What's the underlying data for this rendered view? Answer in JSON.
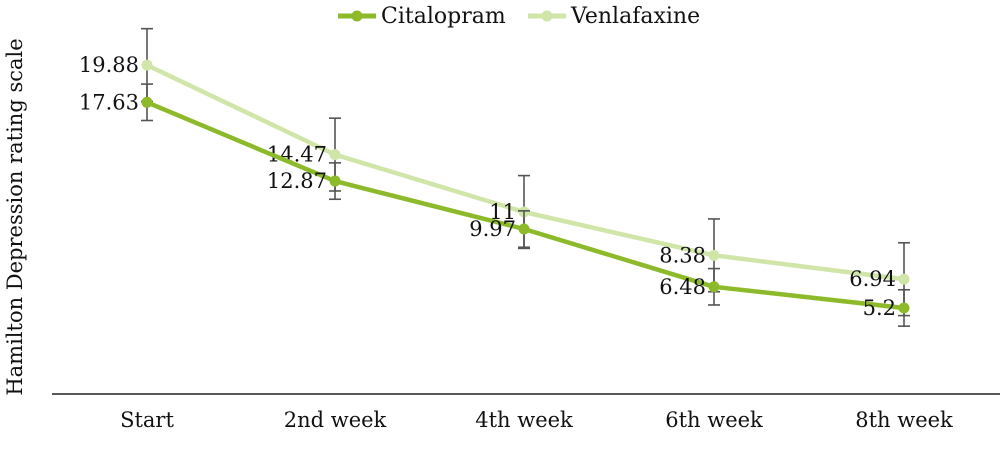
{
  "chart_data": {
    "type": "line",
    "title": "",
    "xlabel": "",
    "ylabel": "Hamilton Depression rating scale",
    "categories": [
      "Start",
      "2nd week",
      "4th week",
      "6th week",
      "8th week"
    ],
    "ylim": [
      0,
      22
    ],
    "grid": false,
    "legend_position": "top-center",
    "series": [
      {
        "name": "Citalopram",
        "color": "#8dba2a",
        "values": [
          17.63,
          12.87,
          9.97,
          6.48,
          5.2
        ],
        "labels": [
          "17.63",
          "12.87",
          "9.97",
          "6.48",
          "5.2"
        ],
        "error": [
          1.1,
          1.1,
          1.1,
          1.1,
          1.1
        ]
      },
      {
        "name": "Venlafaxine",
        "color": "#cfe6a8",
        "values": [
          19.88,
          14.47,
          11,
          8.38,
          6.94
        ],
        "labels": [
          "19.88",
          "14.47",
          "11",
          "8.38",
          "6.94"
        ],
        "error": [
          2.2,
          2.2,
          2.2,
          2.2,
          2.2
        ]
      }
    ]
  }
}
